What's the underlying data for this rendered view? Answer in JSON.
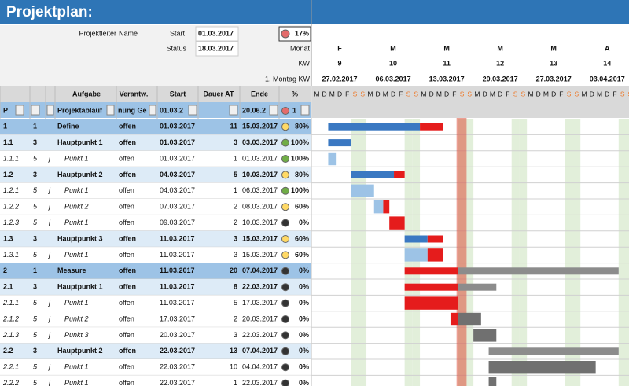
{
  "header": {
    "title": "Projektplan:",
    "project_lead_label": "Projektleiter",
    "project_lead": "Name",
    "start_label": "Start",
    "start": "01.03.2017",
    "status_label": "Status",
    "status": "18.03.2017",
    "progress": "17%",
    "month_label": "Monat",
    "kw_label": "KW",
    "monday_label": "1. Montag KW"
  },
  "timeline": {
    "weeks": [
      {
        "month": "F",
        "kw": "9",
        "monday": "27.02.2017"
      },
      {
        "month": "M",
        "kw": "10",
        "monday": "06.03.2017"
      },
      {
        "month": "M",
        "kw": "11",
        "monday": "13.03.2017"
      },
      {
        "month": "M",
        "kw": "12",
        "monday": "20.03.2017"
      },
      {
        "month": "M",
        "kw": "13",
        "monday": "27.03.2017"
      },
      {
        "month": "A",
        "kw": "14",
        "monday": "03.04.2017"
      }
    ],
    "weekdays": [
      "M",
      "D",
      "M",
      "D",
      "F",
      "S",
      "S"
    ]
  },
  "table": {
    "columns": [
      "Aufgabe",
      "Verantw.",
      "Start",
      "Dauer AT",
      "Ende",
      "%"
    ],
    "filter_row": {
      "id": "P",
      "task": "Projektablauf",
      "owner": "nung Ge",
      "start": "01.03.2",
      "end": "20.06.2",
      "pct": "1"
    },
    "rows": [
      [
        "1",
        "1",
        null,
        "Define",
        "offen",
        "01.03.2017",
        "11",
        "15.03.2017",
        "80%"
      ],
      [
        "1.1",
        "3",
        null,
        "Hauptpunkt 1",
        "offen",
        "01.03.2017",
        "3",
        "03.03.2017",
        "100%"
      ],
      [
        "1.1.1",
        "5",
        "j",
        "Punkt 1",
        "offen",
        "01.03.2017",
        "1",
        "01.03.2017",
        "100%"
      ],
      [
        "1.2",
        "3",
        null,
        "Hauptpunkt 2",
        "offen",
        "04.03.2017",
        "5",
        "10.03.2017",
        "80%"
      ],
      [
        "1.2.1",
        "5",
        "j",
        "Punkt 1",
        "offen",
        "04.03.2017",
        "1",
        "06.03.2017",
        "100%"
      ],
      [
        "1.2.2",
        "5",
        "j",
        "Punkt 2",
        "offen",
        "07.03.2017",
        "2",
        "08.03.2017",
        "60%"
      ],
      [
        "1.2.3",
        "5",
        "j",
        "Punkt 1",
        "offen",
        "09.03.2017",
        "2",
        "10.03.2017",
        "0%"
      ],
      [
        "1.3",
        "3",
        null,
        "Hauptpunkt 3",
        "offen",
        "11.03.2017",
        "3",
        "15.03.2017",
        "60%"
      ],
      [
        "1.3.1",
        "5",
        "j",
        "Punkt 1",
        "offen",
        "11.03.2017",
        "3",
        "15.03.2017",
        "60%"
      ],
      [
        "2",
        "1",
        null,
        "Measure",
        "offen",
        "11.03.2017",
        "20",
        "07.04.2017",
        "0%"
      ],
      [
        "2.1",
        "3",
        null,
        "Hauptpunkt 1",
        "offen",
        "11.03.2017",
        "8",
        "22.03.2017",
        "0%"
      ],
      [
        "2.1.1",
        "5",
        "j",
        "Punkt 1",
        "offen",
        "11.03.2017",
        "5",
        "17.03.2017",
        "0%"
      ],
      [
        "2.1.2",
        "5",
        "j",
        "Punkt 2",
        "offen",
        "17.03.2017",
        "2",
        "20.03.2017",
        "0%"
      ],
      [
        "2.1.3",
        "5",
        "j",
        "Punkt 3",
        "offen",
        "20.03.2017",
        "3",
        "22.03.2017",
        "0%"
      ],
      [
        "2.2",
        "3",
        null,
        "Hauptpunkt 2",
        "offen",
        "22.03.2017",
        "13",
        "07.04.2017",
        "0%"
      ],
      [
        "2.2.1",
        "5",
        "j",
        "Punkt 1",
        "offen",
        "22.03.2017",
        "10",
        "04.04.2017",
        "0%"
      ],
      [
        "2.2.2",
        "5",
        "j",
        "Punkt 1",
        "offen",
        "22.03.2017",
        "1",
        "22.03.2017",
        "0%"
      ]
    ]
  }
}
